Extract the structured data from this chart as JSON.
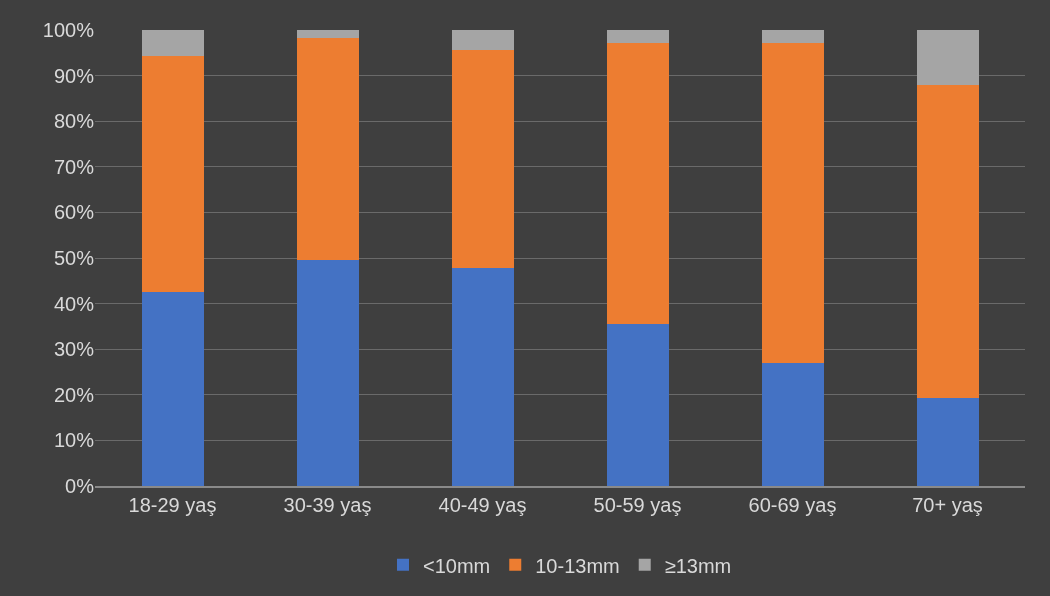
{
  "chart_data": {
    "type": "bar",
    "stacked": true,
    "categories": [
      "18-29 yaş",
      "30-39 yaş",
      "40-49 yaş",
      "50-59 yaş",
      "60-69 yaş",
      "70+ yaş"
    ],
    "series": [
      {
        "name": "<10mm",
        "color": "#4472c4",
        "values": [
          42.5,
          49.6,
          47.8,
          35.5,
          27,
          19.4
        ]
      },
      {
        "name": "10-13mm",
        "color": "#ed7d31",
        "values": [
          51.8,
          48.7,
          47.9,
          61.7,
          70.2,
          68.6
        ]
      },
      {
        "name": "≥13mm",
        "color": "#a5a5a5",
        "values": [
          5.7,
          1.7,
          4.3,
          2.8,
          2.8,
          12
        ]
      }
    ],
    "ylim": [
      0,
      100
    ],
    "yticks": [
      {
        "value": 0,
        "label": "0%"
      },
      {
        "value": 10,
        "label": "10%"
      },
      {
        "value": 20,
        "label": "20%"
      },
      {
        "value": 30,
        "label": "30%"
      },
      {
        "value": 40,
        "label": "40%"
      },
      {
        "value": 50,
        "label": "50%"
      },
      {
        "value": 60,
        "label": "60%"
      },
      {
        "value": 70,
        "label": "70%"
      },
      {
        "value": 80,
        "label": "80%"
      },
      {
        "value": 90,
        "label": "90%"
      },
      {
        "value": 100,
        "label": "100%"
      }
    ],
    "grid": "y",
    "legend": "bottom"
  }
}
